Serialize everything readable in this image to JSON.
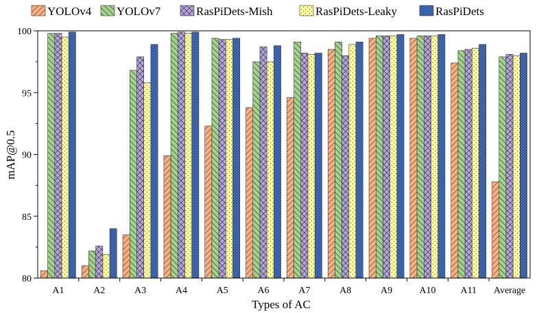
{
  "chart_data": {
    "type": "bar",
    "title": "",
    "xlabel": "Types of AC",
    "ylabel": "mAP@0.5",
    "ylim": [
      80,
      100
    ],
    "yticks": [
      80,
      85,
      90,
      95,
      100
    ],
    "grid": false,
    "legend_position": "top",
    "categories": [
      "A1",
      "A2",
      "A3",
      "A4",
      "A5",
      "A6",
      "A7",
      "A8",
      "A9",
      "A10",
      "A11",
      "Average"
    ],
    "series": [
      {
        "name": "YOLOv4",
        "color": "#F4B183",
        "pattern": "hatch-right",
        "values": [
          80.6,
          81.0,
          83.5,
          89.9,
          92.3,
          93.8,
          94.6,
          98.5,
          99.4,
          99.4,
          97.4,
          87.8
        ]
      },
      {
        "name": "YOLOv7",
        "color": "#A9D18E",
        "pattern": "hatch-left",
        "values": [
          99.8,
          82.2,
          96.8,
          99.8,
          99.4,
          97.5,
          99.1,
          99.1,
          99.6,
          99.6,
          98.4,
          97.9
        ]
      },
      {
        "name": "RasPiDets-Mish",
        "color": "#B4A7D6",
        "pattern": "crosshatch",
        "values": [
          99.8,
          82.6,
          97.9,
          99.9,
          99.3,
          98.7,
          98.2,
          98.0,
          99.6,
          99.6,
          98.5,
          98.1
        ]
      },
      {
        "name": "RasPiDets-Leaky",
        "color": "#FFFF99",
        "pattern": "dots",
        "values": [
          99.5,
          81.9,
          95.8,
          99.8,
          99.3,
          97.5,
          98.1,
          98.9,
          99.6,
          99.6,
          98.6,
          98.0
        ]
      },
      {
        "name": "RasPiDets",
        "color": "#4472C4",
        "pattern": "dense-dots",
        "values": [
          99.9,
          84.0,
          98.9,
          99.9,
          99.4,
          98.8,
          98.2,
          99.1,
          99.7,
          99.7,
          98.9,
          98.2
        ]
      }
    ]
  }
}
